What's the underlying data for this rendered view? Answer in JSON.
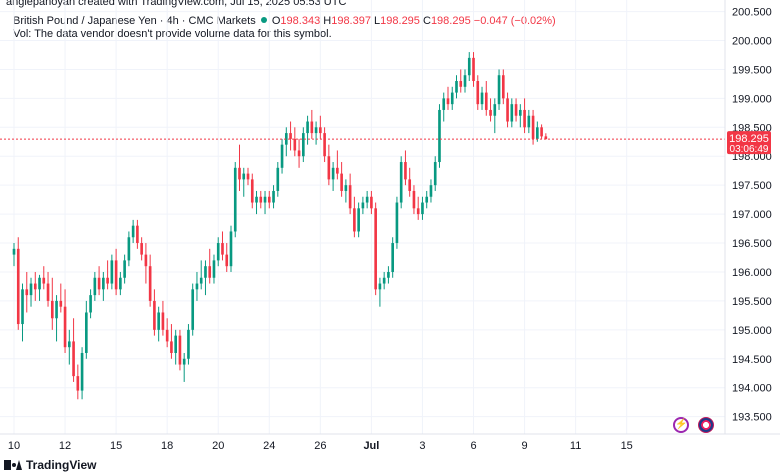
{
  "credit": "anglepanoyan created with TradingView.com, Jul 15, 2025 05:53 UTC",
  "legend": {
    "symbol": "British Pound / Japanese Yen · 4h · CMC Markets",
    "open_label": "O",
    "open": "198.343",
    "high_label": "H",
    "high": "198.397",
    "low_label": "L",
    "low": "198.295",
    "close_label": "C",
    "close": "198.295",
    "change": "−0.047 (−0.02%)"
  },
  "volume_note": "Vol: The data vendor doesn't provide volume data for this symbol.",
  "price_badge": {
    "price": "198.295",
    "countdown": "03:06:49"
  },
  "brand": "TradingView",
  "colors": {
    "up": "#089981",
    "down": "#f23645",
    "grid": "#f0f3fa",
    "text": "#131722"
  },
  "icons": {
    "flash": "flash-icon",
    "flag": "uk-flag-icon"
  },
  "chart_data": {
    "type": "candlestick",
    "title": "British Pound / Japanese Yen · 4h · CMC Markets",
    "ylim": [
      193.2,
      200.7
    ],
    "y_ticks": [
      193.5,
      194.0,
      194.5,
      195.0,
      195.5,
      196.0,
      196.5,
      197.0,
      197.5,
      198.0,
      198.5,
      199.0,
      199.5,
      200.0,
      200.5
    ],
    "y_tick_labels": [
      "193.500",
      "194.000",
      "194.500",
      "195.000",
      "195.500",
      "196.000",
      "196.500",
      "197.000",
      "197.500",
      "198.000",
      "198.500",
      "199.000",
      "199.500",
      "200.000",
      "200.500"
    ],
    "x_index_range": [
      0,
      157
    ],
    "x_ticks": [
      {
        "label": "10",
        "index": 0
      },
      {
        "label": "12",
        "index": 12
      },
      {
        "label": "15",
        "index": 24
      },
      {
        "label": "18",
        "index": 36
      },
      {
        "label": "20",
        "index": 48
      },
      {
        "label": "24",
        "index": 60
      },
      {
        "label": "26",
        "index": 72
      },
      {
        "label": "Jul",
        "index": 84
      },
      {
        "label": "3",
        "index": 96
      },
      {
        "label": "6",
        "index": 108
      },
      {
        "label": "9",
        "index": 120
      },
      {
        "label": "11",
        "index": 132
      },
      {
        "label": "15",
        "index": 144
      }
    ],
    "current_price": 198.295,
    "candles": [
      [
        196.3,
        196.5,
        196.1,
        196.4
      ],
      [
        196.4,
        196.6,
        195.0,
        195.1
      ],
      [
        195.1,
        195.8,
        194.8,
        195.7
      ],
      [
        195.7,
        196.0,
        195.3,
        195.6
      ],
      [
        195.6,
        195.9,
        195.4,
        195.8
      ],
      [
        195.8,
        196.0,
        195.5,
        195.7
      ],
      [
        195.7,
        195.95,
        195.5,
        195.9
      ],
      [
        195.9,
        196.1,
        195.7,
        195.8
      ],
      [
        195.8,
        196.0,
        195.4,
        195.5
      ],
      [
        195.5,
        195.9,
        195.0,
        195.2
      ],
      [
        195.2,
        195.6,
        194.8,
        195.5
      ],
      [
        195.5,
        195.8,
        195.3,
        195.4
      ],
      [
        195.4,
        195.7,
        194.6,
        194.7
      ],
      [
        194.7,
        195.0,
        194.4,
        194.8
      ],
      [
        194.8,
        195.2,
        194.1,
        194.2
      ],
      [
        194.2,
        194.4,
        193.8,
        193.95
      ],
      [
        193.95,
        194.7,
        193.8,
        194.6
      ],
      [
        194.6,
        195.5,
        194.5,
        195.3
      ],
      [
        195.3,
        195.7,
        195.2,
        195.6
      ],
      [
        195.6,
        196.0,
        195.5,
        195.9
      ],
      [
        195.9,
        196.1,
        195.6,
        195.7
      ],
      [
        195.7,
        196.0,
        195.5,
        195.9
      ],
      [
        195.9,
        196.2,
        195.7,
        195.8
      ],
      [
        195.8,
        196.3,
        195.7,
        196.2
      ],
      [
        196.2,
        196.4,
        195.6,
        195.7
      ],
      [
        195.7,
        196.0,
        195.6,
        195.9
      ],
      [
        195.9,
        196.3,
        195.8,
        196.2
      ],
      [
        196.2,
        196.7,
        196.1,
        196.6
      ],
      [
        196.6,
        196.9,
        196.5,
        196.8
      ],
      [
        196.8,
        196.9,
        196.4,
        196.5
      ],
      [
        196.5,
        196.6,
        196.2,
        196.3
      ],
      [
        196.3,
        196.5,
        195.8,
        196.1
      ],
      [
        196.1,
        196.3,
        195.4,
        195.5
      ],
      [
        195.5,
        195.7,
        194.9,
        195.0
      ],
      [
        195.0,
        195.4,
        194.8,
        195.3
      ],
      [
        195.3,
        195.5,
        194.9,
        195.0
      ],
      [
        195.0,
        195.2,
        194.7,
        194.8
      ],
      [
        194.8,
        195.1,
        194.5,
        194.6
      ],
      [
        194.6,
        195.0,
        194.4,
        194.9
      ],
      [
        194.9,
        195.0,
        194.3,
        194.4
      ],
      [
        194.4,
        194.6,
        194.1,
        194.5
      ],
      [
        194.5,
        195.1,
        194.4,
        195.0
      ],
      [
        195.0,
        195.8,
        194.9,
        195.7
      ],
      [
        195.7,
        196.0,
        195.5,
        195.8
      ],
      [
        195.8,
        196.2,
        195.7,
        195.9
      ],
      [
        195.9,
        196.2,
        195.6,
        196.1
      ],
      [
        196.1,
        196.4,
        195.8,
        195.9
      ],
      [
        195.9,
        196.3,
        195.8,
        196.2
      ],
      [
        196.2,
        196.6,
        196.1,
        196.5
      ],
      [
        196.5,
        196.7,
        196.2,
        196.3
      ],
      [
        196.3,
        196.5,
        196.0,
        196.1
      ],
      [
        196.1,
        196.8,
        196.0,
        196.7
      ],
      [
        196.7,
        197.9,
        196.6,
        197.8
      ],
      [
        197.8,
        198.2,
        197.4,
        197.6
      ],
      [
        197.6,
        197.8,
        197.3,
        197.7
      ],
      [
        197.7,
        197.8,
        197.5,
        197.6
      ],
      [
        197.6,
        197.7,
        197.1,
        197.2
      ],
      [
        197.2,
        197.4,
        197.0,
        197.3
      ],
      [
        197.3,
        197.4,
        197.1,
        197.2
      ],
      [
        197.2,
        197.4,
        197.0,
        197.3
      ],
      [
        197.3,
        197.4,
        197.1,
        197.2
      ],
      [
        197.2,
        197.5,
        197.1,
        197.4
      ],
      [
        197.4,
        197.9,
        197.3,
        197.8
      ],
      [
        197.8,
        198.3,
        197.7,
        198.2
      ],
      [
        198.2,
        198.5,
        198.0,
        198.4
      ],
      [
        198.4,
        198.6,
        198.1,
        198.3
      ],
      [
        198.3,
        198.5,
        198.0,
        198.1
      ],
      [
        198.1,
        198.3,
        197.8,
        198.0
      ],
      [
        198.0,
        198.5,
        197.9,
        198.4
      ],
      [
        198.4,
        198.7,
        198.2,
        198.6
      ],
      [
        198.6,
        198.8,
        198.3,
        198.4
      ],
      [
        198.4,
        198.6,
        198.2,
        198.5
      ],
      [
        198.5,
        198.7,
        198.3,
        198.4
      ],
      [
        198.4,
        198.5,
        197.9,
        198.0
      ],
      [
        198.0,
        198.2,
        197.5,
        197.6
      ],
      [
        197.6,
        197.9,
        197.4,
        197.8
      ],
      [
        197.8,
        198.1,
        197.6,
        197.7
      ],
      [
        197.7,
        197.9,
        197.3,
        197.4
      ],
      [
        197.4,
        197.6,
        197.2,
        197.5
      ],
      [
        197.5,
        197.7,
        197.0,
        197.1
      ],
      [
        197.1,
        197.3,
        196.6,
        196.7
      ],
      [
        196.7,
        197.2,
        196.6,
        197.1
      ],
      [
        197.1,
        197.3,
        197.0,
        197.2
      ],
      [
        197.2,
        197.4,
        197.1,
        197.3
      ],
      [
        197.3,
        197.4,
        197.0,
        197.1
      ],
      [
        197.1,
        197.2,
        195.6,
        195.7
      ],
      [
        195.7,
        195.9,
        195.4,
        195.8
      ],
      [
        195.8,
        196.0,
        195.7,
        195.9
      ],
      [
        195.9,
        196.1,
        195.8,
        196.0
      ],
      [
        196.0,
        196.6,
        195.9,
        196.5
      ],
      [
        196.5,
        197.3,
        196.4,
        197.2
      ],
      [
        197.2,
        198.0,
        197.1,
        197.9
      ],
      [
        197.9,
        198.1,
        197.5,
        197.6
      ],
      [
        197.6,
        197.8,
        197.3,
        197.4
      ],
      [
        197.4,
        197.5,
        197.0,
        197.1
      ],
      [
        197.1,
        197.3,
        196.9,
        197.0
      ],
      [
        197.0,
        197.3,
        196.9,
        197.2
      ],
      [
        197.2,
        197.4,
        197.1,
        197.3
      ],
      [
        197.3,
        197.6,
        197.2,
        197.5
      ],
      [
        197.5,
        198.0,
        197.4,
        197.9
      ],
      [
        197.9,
        198.9,
        197.8,
        198.8
      ],
      [
        198.8,
        199.1,
        198.6,
        199.0
      ],
      [
        199.0,
        199.2,
        198.8,
        198.9
      ],
      [
        198.9,
        199.2,
        198.8,
        199.1
      ],
      [
        199.1,
        199.4,
        199.0,
        199.3
      ],
      [
        199.3,
        199.5,
        199.1,
        199.2
      ],
      [
        199.2,
        199.5,
        199.1,
        199.4
      ],
      [
        199.4,
        199.8,
        199.3,
        199.7
      ],
      [
        199.7,
        199.8,
        199.2,
        199.3
      ],
      [
        199.3,
        199.4,
        198.8,
        198.9
      ],
      [
        198.9,
        199.2,
        198.8,
        199.1
      ],
      [
        199.1,
        199.3,
        198.7,
        198.8
      ],
      [
        198.8,
        199.0,
        198.6,
        198.7
      ],
      [
        198.7,
        199.0,
        198.4,
        198.9
      ],
      [
        198.9,
        199.5,
        198.8,
        199.4
      ],
      [
        199.4,
        199.5,
        198.9,
        199.0
      ],
      [
        199.0,
        199.1,
        198.5,
        198.6
      ],
      [
        198.6,
        199.0,
        198.5,
        198.9
      ],
      [
        198.9,
        199.0,
        198.6,
        198.7
      ],
      [
        198.7,
        198.9,
        198.5,
        198.8
      ],
      [
        198.8,
        199.0,
        198.4,
        198.5
      ],
      [
        198.5,
        198.8,
        198.4,
        198.7
      ],
      [
        198.7,
        198.8,
        198.2,
        198.3
      ],
      [
        198.3,
        198.6,
        198.25,
        198.5
      ],
      [
        198.5,
        198.55,
        198.3,
        198.343
      ],
      [
        198.343,
        198.397,
        198.295,
        198.295
      ]
    ]
  }
}
